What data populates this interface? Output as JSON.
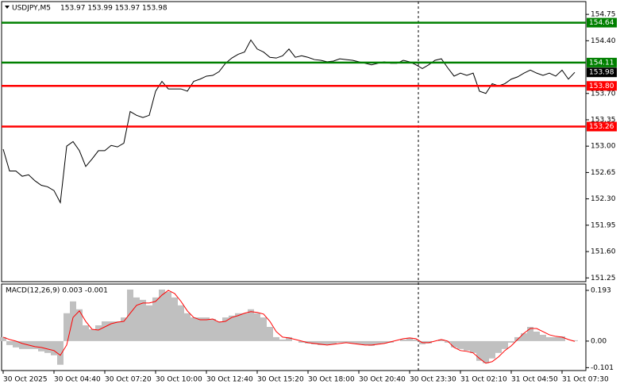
{
  "chart_data": [
    {
      "type": "line",
      "title": "USDJPY,M5",
      "ohlc": "153.97 153.99 153.97 153.98",
      "categories": [
        "30 Oct 2025",
        null,
        null,
        null,
        null,
        null,
        null,
        null,
        "30 Oct 04:40",
        null,
        null,
        null,
        null,
        null,
        null,
        null,
        "30 Oct 07:20",
        null,
        null,
        null,
        null,
        null,
        null,
        null,
        "30 Oct 10:00",
        null,
        null,
        null,
        null,
        null,
        null,
        null,
        "30 Oct 12:40",
        null,
        null,
        null,
        null,
        null,
        null,
        null,
        "30 Oct 15:20",
        null,
        null,
        null,
        null,
        null,
        null,
        null,
        "30 Oct 18:00",
        null,
        null,
        null,
        null,
        null,
        null,
        null,
        "30 Oct 20:40",
        null,
        null,
        null,
        null,
        null,
        null,
        null,
        "30 Oct 23:30",
        null,
        null,
        null,
        null,
        null,
        null,
        null,
        "31 Oct 02:10",
        null,
        null,
        null,
        null,
        null,
        null,
        null,
        "31 Oct 04:50",
        null,
        null,
        null,
        null,
        null,
        null,
        null,
        "31 Oct 07:30",
        null,
        null
      ],
      "series": [
        {
          "color": "#000000",
          "values": [
            152.96,
            152.67,
            152.67,
            152.6,
            152.62,
            152.54,
            152.48,
            152.46,
            152.41,
            152.25,
            153.0,
            153.06,
            152.94,
            152.73,
            152.83,
            152.94,
            152.94,
            153.01,
            152.99,
            153.04,
            153.46,
            153.41,
            153.38,
            153.41,
            153.73,
            153.86,
            153.76,
            153.76,
            153.76,
            153.73,
            153.86,
            153.89,
            153.93,
            153.94,
            153.99,
            154.1,
            154.17,
            154.22,
            154.25,
            154.41,
            154.29,
            154.25,
            154.18,
            154.17,
            154.2,
            154.29,
            154.18,
            154.2,
            154.18,
            154.15,
            154.14,
            154.12,
            154.13,
            154.16,
            154.15,
            154.14,
            154.12,
            154.1,
            154.08,
            154.1,
            154.12,
            154.1,
            154.1,
            154.14,
            154.12,
            154.08,
            154.03,
            154.08,
            154.14,
            154.16,
            154.04,
            153.93,
            153.97,
            153.94,
            153.97,
            153.73,
            153.7,
            153.83,
            153.8,
            153.83,
            153.89,
            153.92,
            153.97,
            154.01,
            153.97,
            153.94,
            153.97,
            153.93,
            154.01,
            153.89,
            153.98
          ]
        }
      ],
      "ylim": [
        151.2,
        154.92
      ],
      "yticks": [
        154.75,
        {
          "value": 154.4,
          "label": "154.40"
        },
        {
          "value": 153.7,
          "label": "153.70"
        },
        153.35,
        {
          "value": 153.0,
          "label": "153.00"
        },
        152.65,
        {
          "value": 152.3,
          "label": "152.30"
        },
        151.95,
        {
          "value": 151.6,
          "label": "151.60"
        },
        151.25
      ],
      "levels": [
        {
          "value": 154.64,
          "label": "154.64",
          "color": "#008000"
        },
        {
          "value": 154.11,
          "label": "154.11",
          "color": "#008000"
        },
        {
          "value": 153.8,
          "label": "153.80",
          "color": "#ff0000"
        },
        {
          "value": 153.26,
          "label": "153.26",
          "color": "#ff0000"
        }
      ],
      "current_price": 153.98,
      "grid": false
    },
    {
      "type": "macd",
      "title": "MACD(12,26,9) 0.003 -0.001",
      "histogram": {
        "color": "#c0c0c0",
        "values": [
          0.015,
          -0.015,
          -0.024,
          -0.03,
          -0.03,
          -0.03,
          -0.039,
          -0.045,
          -0.054,
          -0.09,
          0.106,
          0.151,
          0.121,
          0.06,
          0.045,
          0.06,
          0.075,
          0.075,
          0.075,
          0.09,
          0.196,
          0.166,
          0.157,
          0.136,
          0.166,
          0.196,
          0.187,
          0.166,
          0.136,
          0.106,
          0.09,
          0.09,
          0.09,
          0.084,
          0.075,
          0.09,
          0.097,
          0.106,
          0.106,
          0.121,
          0.106,
          0.09,
          0.054,
          0.015,
          0.006,
          0.015,
          0,
          -0.006,
          -0.009,
          -0.012,
          -0.015,
          -0.015,
          -0.012,
          -0.006,
          -0.006,
          -0.009,
          -0.012,
          -0.015,
          -0.018,
          -0.012,
          -0.009,
          -0.006,
          0,
          0.006,
          0.012,
          0.006,
          -0.012,
          -0.009,
          0,
          0.006,
          -0.006,
          -0.024,
          -0.03,
          -0.036,
          -0.045,
          -0.075,
          -0.084,
          -0.066,
          -0.045,
          -0.03,
          -0.006,
          0.015,
          0.03,
          0.054,
          0.036,
          0.024,
          0.015,
          0.015,
          0.018,
          0,
          0.003
        ]
      },
      "signal": {
        "color": "#ff0000",
        "values": [
          0.015,
          0.006,
          0,
          -0.009,
          -0.015,
          -0.021,
          -0.024,
          -0.03,
          -0.036,
          -0.054,
          -0.015,
          0.09,
          0.115,
          0.075,
          0.045,
          0.042,
          0.054,
          0.066,
          0.072,
          0.075,
          0.106,
          0.136,
          0.145,
          0.145,
          0.151,
          0.175,
          0.193,
          0.181,
          0.151,
          0.115,
          0.09,
          0.081,
          0.081,
          0.084,
          0.072,
          0.075,
          0.09,
          0.097,
          0.106,
          0.112,
          0.109,
          0.103,
          0.075,
          0.036,
          0.015,
          0.012,
          0.006,
          0,
          -0.006,
          -0.009,
          -0.012,
          -0.015,
          -0.012,
          -0.009,
          -0.006,
          -0.009,
          -0.012,
          -0.015,
          -0.015,
          -0.012,
          -0.009,
          -0.003,
          0.003,
          0.009,
          0.012,
          0.009,
          -0.006,
          -0.006,
          0,
          0.006,
          0,
          -0.024,
          -0.036,
          -0.039,
          -0.045,
          -0.066,
          -0.084,
          -0.078,
          -0.06,
          -0.036,
          -0.018,
          0.006,
          0.03,
          0.048,
          0.048,
          0.036,
          0.024,
          0.018,
          0.015,
          0.006,
          -0.001
        ]
      },
      "ylim": [
        -0.112,
        0.217
      ],
      "yticks": [
        0.193,
        {
          "value": 0,
          "label": "0.00"
        },
        -0.101
      ]
    }
  ]
}
